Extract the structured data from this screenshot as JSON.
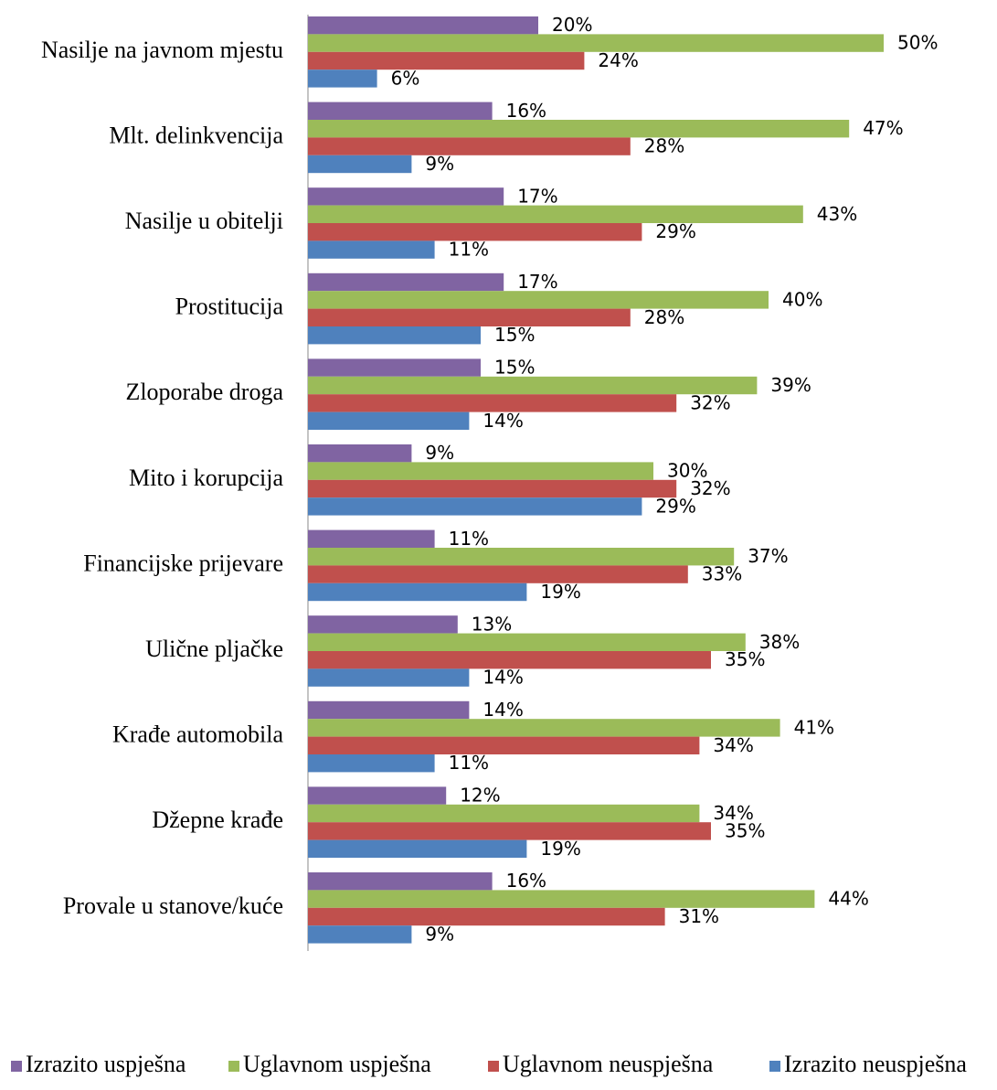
{
  "chart_data": {
    "type": "bar",
    "orientation": "horizontal",
    "categories": [
      "Nasilje na javnom mjestu",
      "Mlt. delinkvencija",
      "Nasilje u obitelji",
      "Prostitucija",
      "Zloporabe droga",
      "Mito i korupcija",
      "Financijske prijevare",
      "Ulične pljačke",
      "Krađe automobila",
      "Džepne krađe",
      "Provale u stanove/kuće"
    ],
    "series": [
      {
        "name": "Izrazito uspješna",
        "color": "#8064a2",
        "values": [
          20,
          16,
          17,
          17,
          15,
          9,
          11,
          13,
          14,
          12,
          16
        ],
        "value_labels": [
          "20%",
          "16%",
          "17%",
          "17%",
          "15%",
          "9%",
          "11%",
          "13%",
          "14%",
          "12%",
          "16%"
        ]
      },
      {
        "name": "Uglavnom uspješna",
        "color": "#9bbb59",
        "values": [
          50,
          47,
          43,
          40,
          39,
          30,
          37,
          38,
          41,
          34,
          44
        ],
        "value_labels": [
          "50%",
          "47%",
          "43%",
          "40%",
          "39%",
          "30%",
          "37%",
          "38%",
          "41%",
          "34%",
          "44%"
        ]
      },
      {
        "name": "Uglavnom neuspješna",
        "color": "#c0504d",
        "values": [
          24,
          28,
          29,
          28,
          32,
          32,
          33,
          35,
          34,
          35,
          31
        ],
        "value_labels": [
          "24%",
          "28%",
          "29%",
          "28%",
          "32%",
          "32%",
          "33%",
          "35%",
          "34%",
          "35%",
          "31%"
        ]
      },
      {
        "name": "Izrazito neuspješna",
        "color": "#4f81bd",
        "values": [
          6,
          9,
          11,
          15,
          14,
          29,
          19,
          14,
          11,
          19,
          9
        ],
        "value_labels": [
          "6%",
          "9%",
          "11%",
          "15%",
          "14%",
          "29%",
          "19%",
          "14%",
          "11%",
          "19%",
          "9%"
        ]
      }
    ],
    "legend": "bottom"
  }
}
